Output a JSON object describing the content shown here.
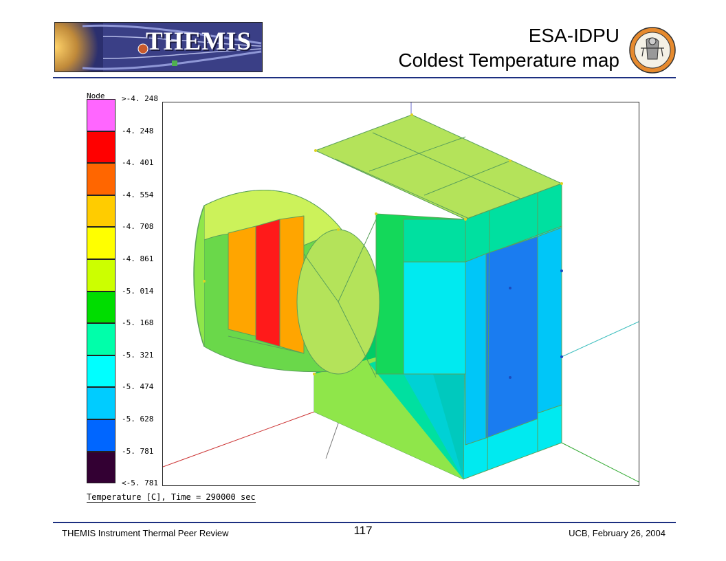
{
  "header": {
    "logo_text": "THEMIS",
    "title_line1": "ESA-IDPU",
    "title_line2": "Coldest Temperature map"
  },
  "footer": {
    "left": "THEMIS Instrument Thermal Peer Review",
    "page_number": "117",
    "right": "UCB, February 26, 2004"
  },
  "legend": {
    "title": "Node",
    "bins": [
      {
        "label": ">-4. 248",
        "color": "#ff66ff"
      },
      {
        "label": "-4. 248",
        "color": "#ff0000"
      },
      {
        "label": "-4. 401",
        "color": "#ff6600"
      },
      {
        "label": "-4. 554",
        "color": "#ffcc00"
      },
      {
        "label": "-4. 708",
        "color": "#ffff00"
      },
      {
        "label": "-4. 861",
        "color": "#ccff00"
      },
      {
        "label": "-5. 014",
        "color": "#00dd00"
      },
      {
        "label": "-5. 168",
        "color": "#00ffaa"
      },
      {
        "label": "-5. 321",
        "color": "#00ffff"
      },
      {
        "label": "-5. 474",
        "color": "#00ccff"
      },
      {
        "label": "-5. 628",
        "color": "#0066ff"
      },
      {
        "label": "-5. 781",
        "color": "#330033"
      },
      {
        "label": "<-5. 781",
        "color": ""
      }
    ]
  },
  "caption": "Temperature [C], Time = 290000 sec",
  "colors": {
    "rule": "#1c2f80",
    "mesh_edge": "#5aa05a"
  }
}
